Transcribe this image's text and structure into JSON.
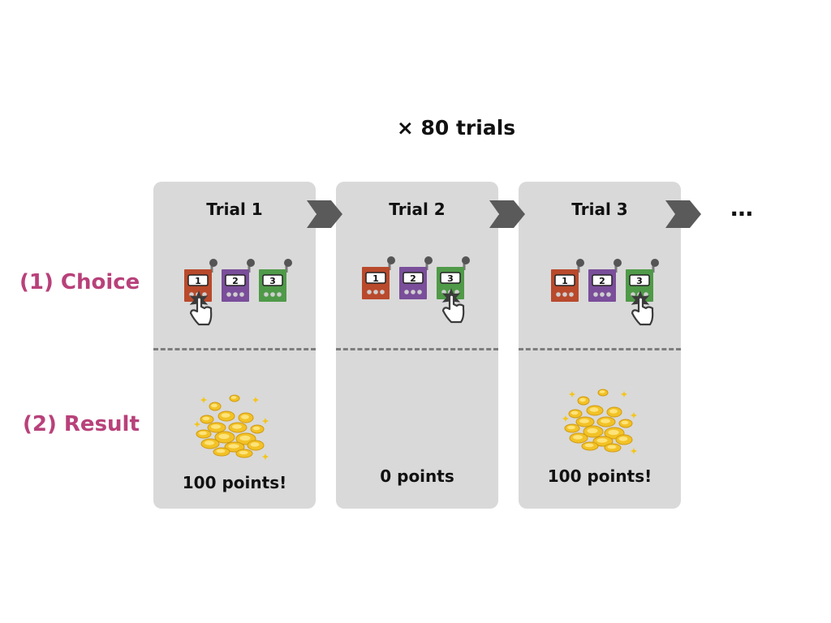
{
  "header": {
    "title": "× 80 trials"
  },
  "rows": {
    "choice_label": "(1) Choice",
    "result_label": "(2) Result"
  },
  "ellipsis": "…",
  "machine_colors": [
    "#b94a2c",
    "#7a4e9a",
    "#4f9a48"
  ],
  "machine_labels": [
    "1",
    "2",
    "3"
  ],
  "trials": [
    {
      "title": "Trial 1",
      "chosen_machine": 1,
      "result": "100 points!",
      "coins": true
    },
    {
      "title": "Trial 2",
      "chosen_machine": 3,
      "result": "0 points",
      "coins": false
    },
    {
      "title": "Trial 3",
      "chosen_machine": 3,
      "result": "100 points!",
      "coins": true
    }
  ]
}
